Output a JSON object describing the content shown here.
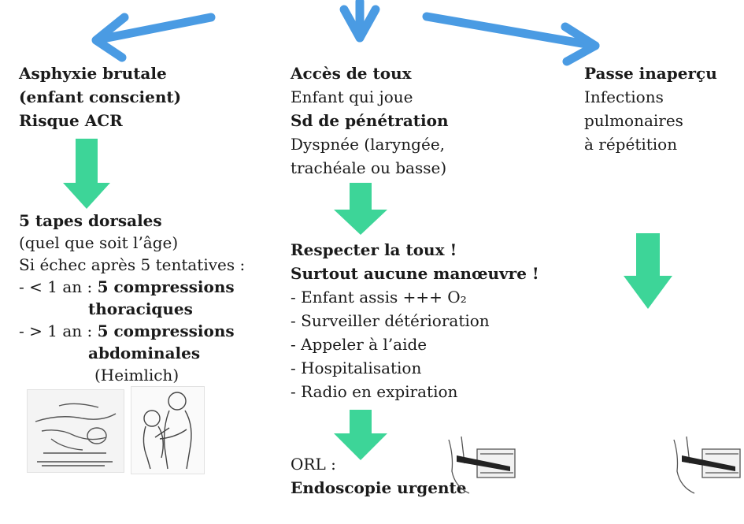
{
  "colors": {
    "blue_arrow": "#4a9be3",
    "green_arrow": "#3dd598",
    "text": "#1a1a1a"
  },
  "left": {
    "heading": [
      "Asphyxie brutale",
      "(enfant conscient)",
      "Risque ACR"
    ],
    "action_title": "5 tapes dorsales",
    "action_lines": [
      "(quel que soit l’âge)",
      "Si échec après 5 tentatives :"
    ],
    "under1_prefix": "- < 1 an : ",
    "under1_bold": "5 compressions",
    "under1_cont": "thoraciques",
    "over1_prefix": "- > 1 an : ",
    "over1_bold": "5 compressions",
    "over1_cont": "abdominales",
    "heimlich": "(Heimlich)"
  },
  "middle": {
    "title1": "Accès de toux",
    "line1": "Enfant qui joue",
    "title2": "Sd de pénétration",
    "line2": "Dyspnée (laryngée,",
    "line3": "trachéale ou basse)",
    "advice_title1": "Respecter la toux !",
    "advice_title2": "Surtout aucune manœuvre !",
    "advice_items": [
      "- Enfant assis +++ O₂",
      "- Surveiller détérioration",
      "- Appeler à l’aide",
      "- Hospitalisation",
      "- Radio en expiration"
    ],
    "orl_label": "ORL :",
    "orl_action": "Endoscopie urgente"
  },
  "right": {
    "title": "Passe inaperçu",
    "lines": [
      "Infections",
      "pulmonaires",
      "à répétition"
    ]
  }
}
